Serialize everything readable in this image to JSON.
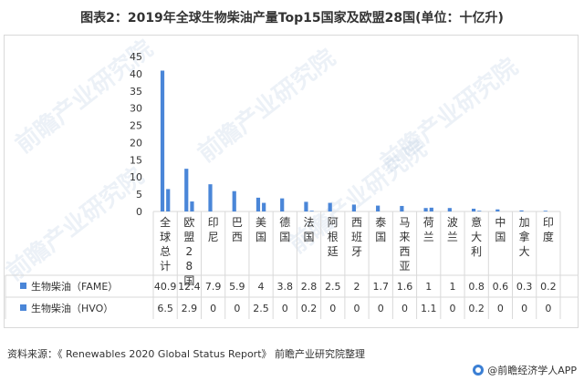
{
  "title": "图表2：2019年全球生物柴油产量Top15国家及欧盟28国(单位：十亿升)",
  "source": "资料来源：《 Renewables 2020 Global Status Report》 前瞻产业研究院整理",
  "brand": "@前瞻经济学人APP",
  "watermark": "前瞻产业研究院",
  "colors": {
    "bar": "#4a86d8",
    "grid": "#d9d9d9",
    "text": "#333333"
  },
  "chart_data": {
    "type": "bar",
    "categories": [
      "全球总计",
      "欧盟28国",
      "印尼",
      "巴西",
      "美国",
      "德国",
      "法国",
      "阿根廷",
      "西班牙",
      "泰国",
      "马来西亚",
      "荷兰",
      "波兰",
      "意大利",
      "中国",
      "加拿大",
      "印度"
    ],
    "series": [
      {
        "name": "生物柴油（FAME）",
        "values": [
          40.9,
          12.4,
          7.9,
          5.9,
          4,
          3.8,
          2.8,
          2.5,
          2,
          1.7,
          1.6,
          1,
          1,
          0.8,
          0.6,
          0.3,
          0.2
        ]
      },
      {
        "name": "生物柴油（HVO）",
        "values": [
          6.5,
          2.9,
          0,
          0,
          2.5,
          0,
          0.2,
          0,
          0,
          0,
          0,
          1.1,
          0,
          0.2,
          0,
          0,
          0
        ]
      }
    ],
    "series_labels": [
      [
        "40.9",
        "12.4",
        "7.9",
        "5.9",
        "4",
        "3.8",
        "2.8",
        "2.5",
        "2",
        "1.7",
        "1.6",
        "1",
        "1",
        "0.8",
        "0.6",
        "0.3",
        "0.2"
      ],
      [
        "6.5",
        "2.9",
        "0",
        "0",
        "2.5",
        "0",
        "0.2",
        "0",
        "0",
        "0",
        "0",
        "1.1",
        "0",
        "0.2",
        "0",
        "0",
        "0"
      ]
    ],
    "y_ticks": [
      0,
      5,
      10,
      15,
      20,
      25,
      30,
      35,
      40,
      45
    ],
    "ylim": [
      0,
      45
    ],
    "grid": false,
    "legend": "data-table"
  }
}
